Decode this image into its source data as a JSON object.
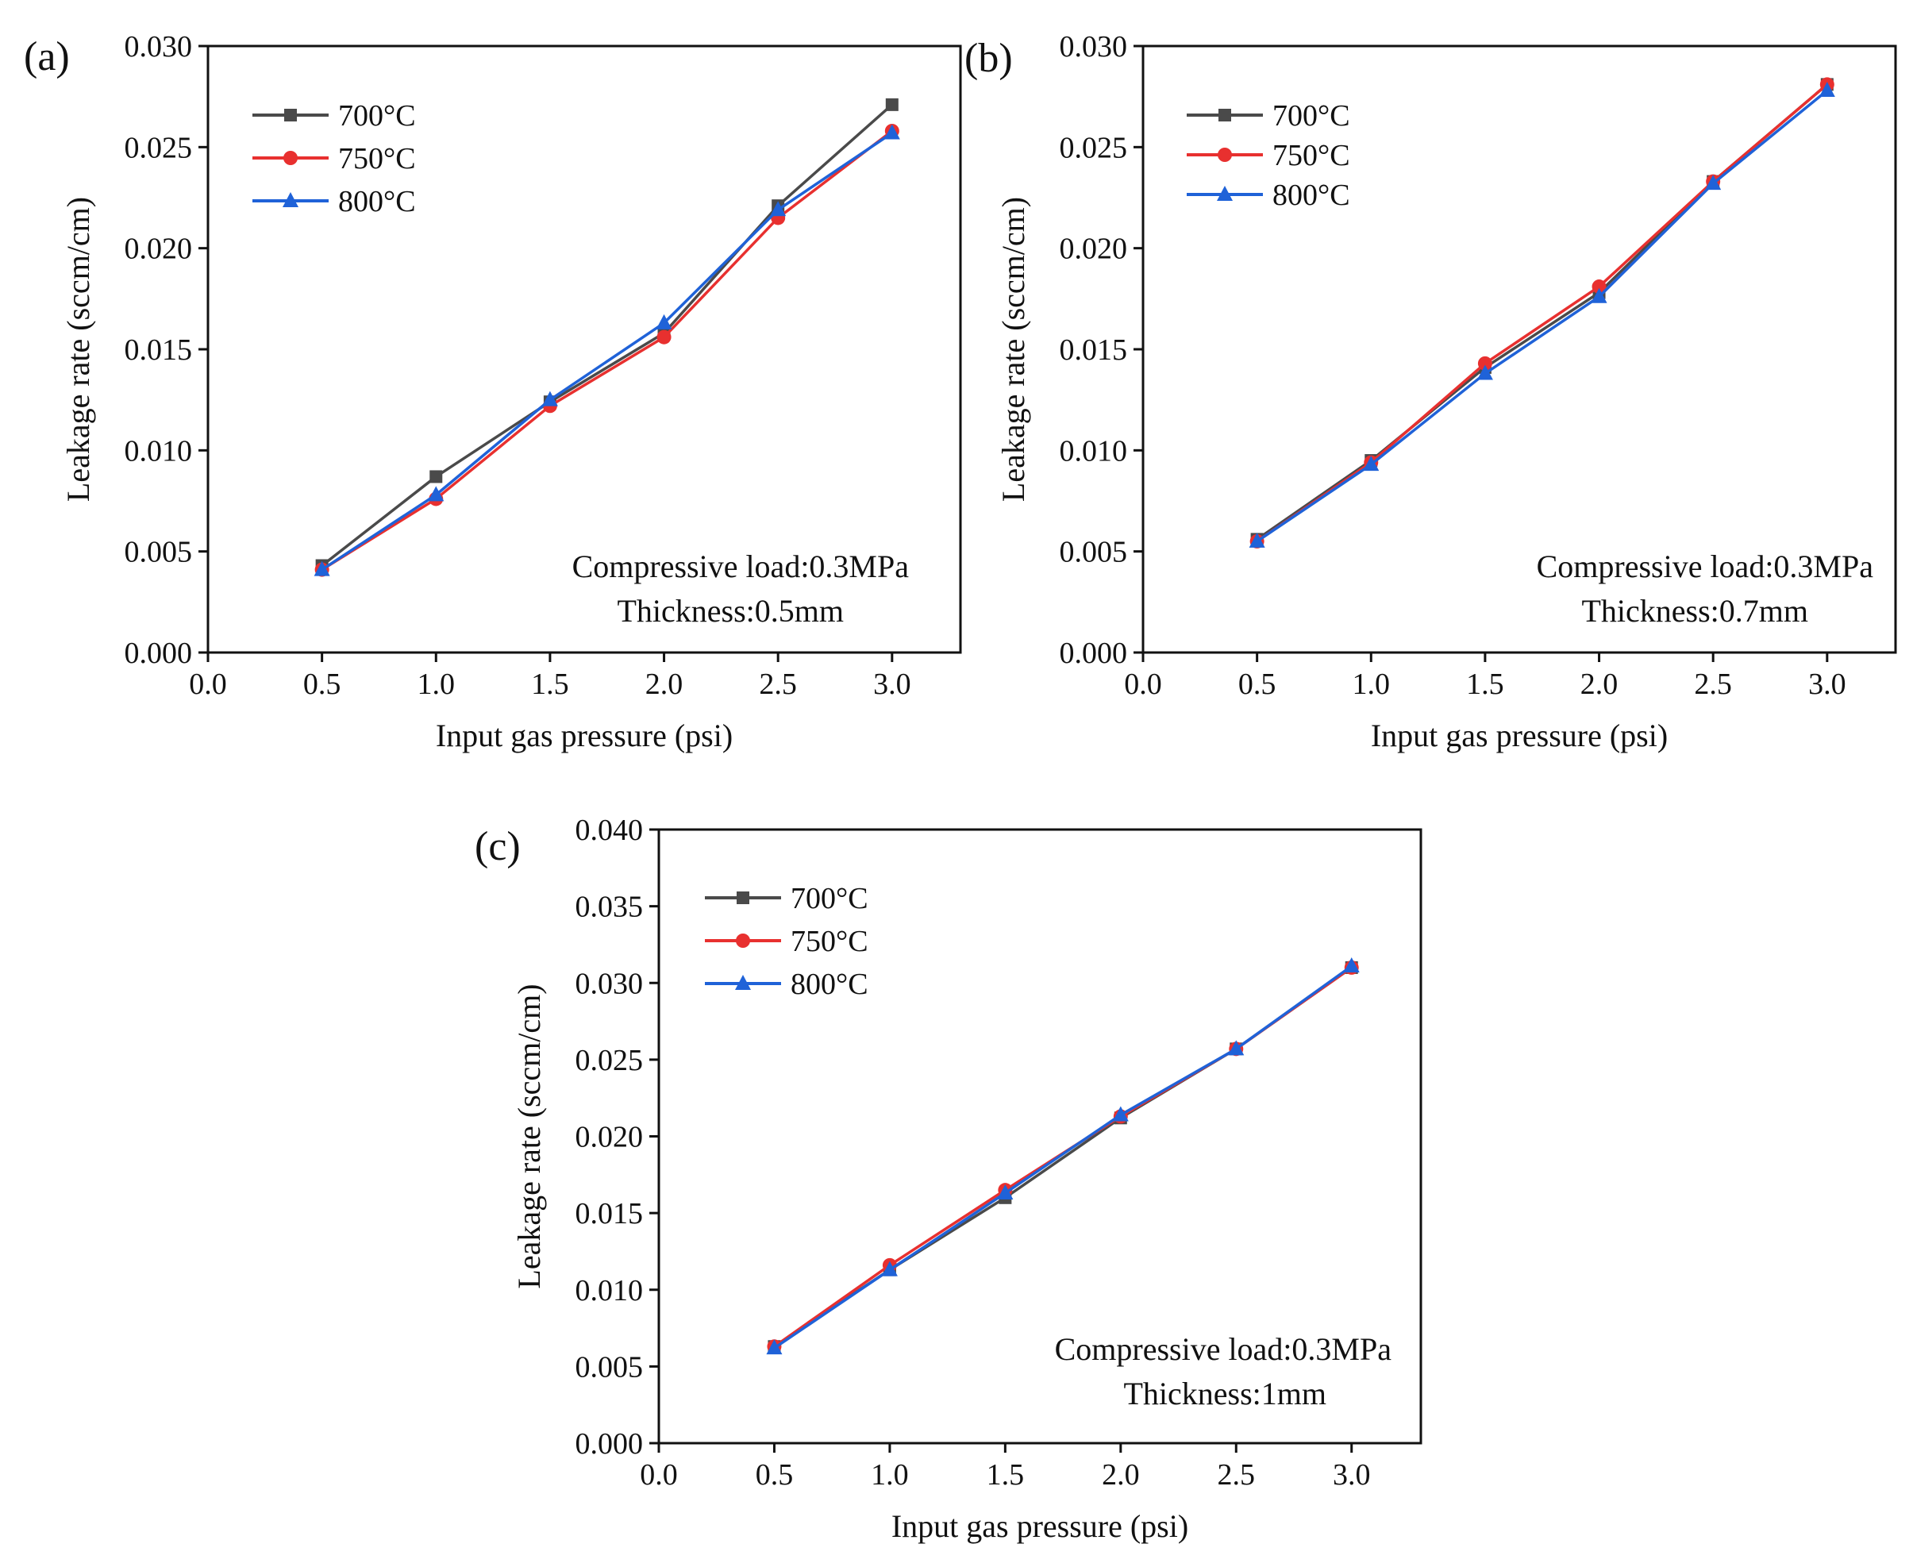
{
  "colors": {
    "700": "#4a4a4a",
    "750": "#e8302f",
    "800": "#1f62d8"
  },
  "chart_data": [
    {
      "type": "line",
      "panel_label": "(a)",
      "xlabel": "Input gas pressure (psi)",
      "ylabel": "Leakage rate (sccm/cm)",
      "xlim": [
        0.0,
        3.3
      ],
      "ylim": [
        0.0,
        0.03
      ],
      "xticks": [
        "0.0",
        "0.5",
        "1.0",
        "1.5",
        "2.0",
        "2.5",
        "3.0"
      ],
      "yticks": [
        "0.000",
        "0.005",
        "0.010",
        "0.015",
        "0.020",
        "0.025",
        "0.030"
      ],
      "legend_position": "top-left",
      "annotations": [
        "Compressive load:0.3MPa",
        "Thickness:0.5mm"
      ],
      "x": [
        0.5,
        1.0,
        1.5,
        2.0,
        2.5,
        3.0
      ],
      "series": [
        {
          "name": "700°C",
          "marker": "square",
          "values": [
            0.0043,
            0.0087,
            0.0124,
            0.0158,
            0.0221,
            0.0271
          ]
        },
        {
          "name": "750°C",
          "marker": "circle",
          "values": [
            0.0041,
            0.0076,
            0.0122,
            0.0156,
            0.0215,
            0.0258
          ]
        },
        {
          "name": "800°C",
          "marker": "triangle",
          "values": [
            0.0041,
            0.0078,
            0.0125,
            0.0163,
            0.0219,
            0.0257
          ]
        }
      ]
    },
    {
      "type": "line",
      "panel_label": "(b)",
      "xlabel": "Input gas pressure (psi)",
      "ylabel": "Leakage rate (sccm/cm)",
      "xlim": [
        0.0,
        3.3
      ],
      "ylim": [
        0.0,
        0.03
      ],
      "xticks": [
        "0.0",
        "0.5",
        "1.0",
        "1.5",
        "2.0",
        "2.5",
        "3.0"
      ],
      "yticks": [
        "0.000",
        "0.005",
        "0.010",
        "0.015",
        "0.020",
        "0.025",
        "0.030"
      ],
      "legend_position": "top-left",
      "annotations": [
        "Compressive load:0.3MPa",
        "Thickness:0.7mm"
      ],
      "x": [
        0.5,
        1.0,
        1.5,
        2.0,
        2.5,
        3.0
      ],
      "series": [
        {
          "name": "700°C",
          "marker": "square",
          "values": [
            0.0056,
            0.0095,
            0.0141,
            0.0178,
            0.0233,
            0.0281
          ]
        },
        {
          "name": "750°C",
          "marker": "circle",
          "values": [
            0.0055,
            0.0094,
            0.0143,
            0.0181,
            0.0233,
            0.0281
          ]
        },
        {
          "name": "800°C",
          "marker": "triangle",
          "values": [
            0.0055,
            0.0093,
            0.0138,
            0.0176,
            0.0232,
            0.0278
          ]
        }
      ]
    },
    {
      "type": "line",
      "panel_label": "(c)",
      "xlabel": "Input gas pressure (psi)",
      "ylabel": "Leakage rate (sccm/cm)",
      "xlim": [
        0.0,
        3.3
      ],
      "ylim": [
        0.0,
        0.04
      ],
      "xticks": [
        "0.0",
        "0.5",
        "1.0",
        "1.5",
        "2.0",
        "2.5",
        "3.0"
      ],
      "yticks": [
        "0.000",
        "0.005",
        "0.010",
        "0.015",
        "0.020",
        "0.025",
        "0.030",
        "0.035",
        "0.040"
      ],
      "legend_position": "top-left",
      "annotations": [
        "Compressive load:0.3MPa",
        "Thickness:1mm"
      ],
      "x": [
        0.5,
        1.0,
        1.5,
        2.0,
        2.5,
        3.0
      ],
      "series": [
        {
          "name": "700°C",
          "marker": "square",
          "values": [
            0.0063,
            0.0113,
            0.016,
            0.0212,
            0.0257,
            0.031
          ]
        },
        {
          "name": "750°C",
          "marker": "circle",
          "values": [
            0.0063,
            0.0116,
            0.0165,
            0.0213,
            0.0257,
            0.031
          ]
        },
        {
          "name": "800°C",
          "marker": "triangle",
          "values": [
            0.0062,
            0.0113,
            0.0163,
            0.0214,
            0.0257,
            0.0311
          ]
        }
      ]
    }
  ]
}
